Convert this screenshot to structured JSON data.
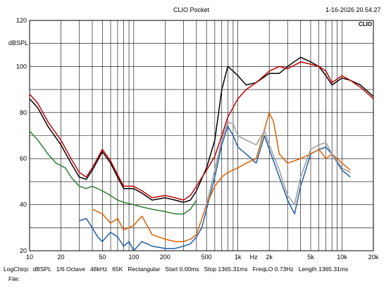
{
  "app_title": "CLIO Pocket",
  "timestamp": "1-16-2026 20.54.27",
  "brand": "CLIO",
  "footer": {
    "line1": "LogChirp:  dBSPL   1/6 Octave   48kHz   65K   Rectangular   Start 0.00ms   Stop 1365.31ms   FreqLO 0.73Hz   Length 1365.31ms",
    "file_label": "File:"
  },
  "chart_data": {
    "type": "line",
    "x_scale": "log",
    "xlim": [
      10,
      20000
    ],
    "ylim": [
      20,
      120
    ],
    "ylabel": "dBSPL",
    "xlabel": "Hz",
    "y_ticks": [
      20,
      40,
      60,
      80,
      100,
      120
    ],
    "x_ticks": [
      {
        "value": 10,
        "label": "10"
      },
      {
        "value": 20,
        "label": "20"
      },
      {
        "value": 50,
        "label": "50"
      },
      {
        "value": 100,
        "label": "100"
      },
      {
        "value": 200,
        "label": "200"
      },
      {
        "value": 500,
        "label": "500"
      },
      {
        "value": 1000,
        "label": "1k"
      },
      {
        "value": 2000,
        "label": "2k"
      },
      {
        "value": 5000,
        "label": "5k"
      },
      {
        "value": 10000,
        "label": "10k"
      },
      {
        "value": 20000,
        "label": "20k"
      }
    ],
    "grid": true,
    "series": [
      {
        "color": "#2e7d32",
        "x": [
          10,
          12,
          15,
          18,
          22,
          25,
          30,
          35,
          40,
          50,
          60,
          70,
          80,
          100,
          120,
          150,
          200,
          250,
          300,
          350,
          400
        ],
        "y": [
          72,
          68,
          62,
          58,
          56,
          52,
          48,
          47,
          48,
          46,
          44,
          42,
          41,
          40,
          39,
          38,
          37,
          36,
          36,
          38,
          42
        ]
      },
      {
        "color": "#1f5fa8",
        "x": [
          30,
          35,
          40,
          45,
          50,
          60,
          70,
          80,
          90,
          100,
          120,
          150,
          200,
          250,
          300,
          350,
          400,
          450,
          500,
          600,
          700,
          800,
          900,
          1000,
          1200,
          1500,
          1800,
          2000,
          2500,
          3000,
          3500,
          4000,
          5000,
          6000,
          7000,
          8000,
          10000,
          12000
        ],
        "y": [
          33,
          34,
          30,
          26,
          24,
          28,
          26,
          22,
          24,
          20,
          24,
          22,
          21,
          21,
          22,
          23,
          26,
          30,
          38,
          52,
          66,
          74,
          70,
          65,
          62,
          58,
          70,
          64,
          52,
          42,
          36,
          48,
          62,
          64,
          65,
          62,
          55,
          52
        ]
      },
      {
        "color": "#e06000",
        "x": [
          40,
          50,
          60,
          70,
          80,
          100,
          120,
          150,
          200,
          250,
          300,
          350,
          400,
          500,
          600,
          700,
          800,
          1000,
          1200,
          1500,
          2000,
          2200,
          2500,
          3000,
          4000,
          5000,
          6000,
          7000,
          8000,
          10000,
          12000
        ],
        "y": [
          38,
          36,
          32,
          34,
          29,
          31,
          35,
          27,
          25,
          24,
          24,
          25,
          27,
          40,
          48,
          52,
          54,
          56,
          58,
          60,
          80,
          76,
          62,
          58,
          60,
          62,
          64,
          60,
          62,
          58,
          55
        ]
      },
      {
        "color": "#999999",
        "x": [
          500,
          600,
          700,
          800,
          900,
          1000,
          1200,
          1500,
          1800,
          2000,
          2500,
          3000,
          3500,
          4000,
          5000,
          6000,
          7000,
          8000,
          10000,
          12000
        ],
        "y": [
          40,
          55,
          68,
          76,
          75,
          70,
          68,
          66,
          72,
          66,
          55,
          44,
          40,
          52,
          64,
          66,
          67,
          62,
          56,
          54
        ]
      },
      {
        "color": "#000000",
        "x": [
          10,
          12,
          15,
          20,
          25,
          30,
          35,
          40,
          50,
          60,
          70,
          80,
          100,
          120,
          150,
          200,
          250,
          300,
          350,
          400,
          500,
          600,
          700,
          800,
          900,
          1000,
          1200,
          1500,
          2000,
          2500,
          3000,
          4000,
          5000,
          6000,
          7000,
          8000,
          10000,
          12000,
          15000,
          20000
        ],
        "y": [
          86,
          82,
          74,
          66,
          58,
          52,
          51,
          55,
          63,
          58,
          52,
          47,
          47,
          45,
          42,
          43,
          42,
          41,
          42,
          46,
          56,
          68,
          90,
          100,
          98,
          96,
          92,
          93,
          97,
          97,
          100,
          104,
          102,
          100,
          96,
          92,
          95,
          94,
          92,
          87
        ]
      },
      {
        "color": "#c00000",
        "x": [
          10,
          12,
          15,
          20,
          25,
          30,
          35,
          40,
          50,
          60,
          70,
          80,
          100,
          120,
          150,
          200,
          250,
          300,
          350,
          400,
          500,
          600,
          700,
          800,
          1000,
          1200,
          1500,
          2000,
          2500,
          3000,
          4000,
          5000,
          6000,
          7000,
          8000,
          10000,
          12000,
          15000,
          20000
        ],
        "y": [
          88,
          84,
          76,
          68,
          60,
          54,
          52,
          56,
          64,
          59,
          53,
          48,
          48,
          46,
          43,
          44,
          43,
          42,
          44,
          48,
          55,
          61,
          70,
          78,
          86,
          90,
          93,
          98,
          100,
          99,
          102,
          101,
          100,
          98,
          93,
          96,
          94,
          91,
          86
        ]
      }
    ]
  }
}
